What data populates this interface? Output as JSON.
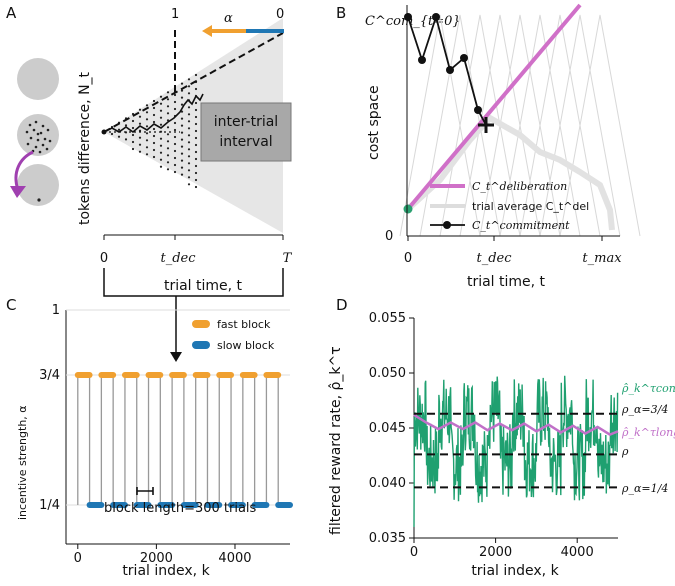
{
  "panels": {
    "A": "A",
    "B": "B",
    "C": "C",
    "D": "D"
  },
  "panelA": {
    "ylabel": "tokens difference, N_t",
    "top_one": "1",
    "top_zero": "0",
    "alpha": "α",
    "intertrial": [
      "inter-trial",
      "interval"
    ],
    "xticks": [
      "0",
      "t_dec",
      "T"
    ],
    "xlabel": "trial time, t",
    "colors": {
      "orange": "#f0a030",
      "blue": "#1f77b4",
      "purple": "#a040b0",
      "gray": "#c8c8c8"
    }
  },
  "panelB": {
    "ylabel": "cost space",
    "y_top_label": "C^com_{t=0}",
    "y_zero": "0",
    "xticks": [
      "0",
      "t_dec",
      "t_max"
    ],
    "xlabel": "trial time, t",
    "legend": [
      {
        "label": "C_t^deliberation",
        "color": "#d070c8",
        "kind": "line"
      },
      {
        "label": "trial average C_t^del",
        "color": "#dddddd",
        "kind": "line"
      },
      {
        "label": "C_t^commitment",
        "color": "#111111",
        "kind": "marker"
      }
    ],
    "commitment_start": "C^com_{t=0}",
    "start_point_color": "#2aa070"
  },
  "chart_data": [
    {
      "panel": "C",
      "type": "scatter",
      "title": "",
      "xlabel": "trial index, k",
      "ylabel": "incentive strength, α",
      "xlim": [
        -300,
        5400
      ],
      "ylim": [
        0.1,
        1.0
      ],
      "xticks": [
        0,
        2000,
        4000
      ],
      "yticks": [
        "1/4",
        "3/4",
        "1"
      ],
      "ytick_values": [
        0.25,
        0.75,
        1.0
      ],
      "block_length": 300,
      "annotation": "block length=300 trials",
      "series": [
        {
          "name": "fast block",
          "color": "#f0a030",
          "value": 0.75,
          "blocks": [
            [
              0,
              300
            ],
            [
              600,
              900
            ],
            [
              1200,
              1500
            ],
            [
              1800,
              2100
            ],
            [
              2400,
              2700
            ],
            [
              3000,
              3300
            ],
            [
              3600,
              3900
            ],
            [
              4200,
              4500
            ],
            [
              4800,
              5100
            ]
          ]
        },
        {
          "name": "slow block",
          "color": "#1f77b4",
          "value": 0.25,
          "blocks": [
            [
              300,
              600
            ],
            [
              900,
              1200
            ],
            [
              1500,
              1800
            ],
            [
              2100,
              2400
            ],
            [
              2700,
              3000
            ],
            [
              3300,
              3600
            ],
            [
              3900,
              4200
            ],
            [
              4500,
              4800
            ],
            [
              5100,
              5400
            ]
          ]
        }
      ],
      "legend_position": "top-right"
    },
    {
      "panel": "D",
      "type": "line",
      "title": "",
      "xlabel": "trial index, k",
      "ylabel": "filtered reward rate, ρ̂_k^τ",
      "xlim": [
        0,
        5000
      ],
      "ylim": [
        0.035,
        0.055
      ],
      "xticks": [
        0,
        2000,
        4000
      ],
      "yticks": [
        "0.035",
        "0.040",
        "0.045",
        "0.050",
        "0.055"
      ],
      "ytick_values": [
        0.035,
        0.04,
        0.045,
        0.05,
        0.055
      ],
      "series": [
        {
          "name": "ρ̂_k^τcontext",
          "color": "#1fa070",
          "block_means": [
            0.046,
            0.042,
            0.0462,
            0.0418,
            0.0463,
            0.0417,
            0.0464,
            0.0419,
            0.0462,
            0.042,
            0.0463,
            0.0418,
            0.0464,
            0.0419,
            0.0463,
            0.0418,
            0.0462
          ],
          "noise_amplitude": 0.0035
        },
        {
          "name": "ρ̂_k^τlong",
          "color": "#c070c8",
          "x": [
            0,
            300,
            600,
            900,
            1200,
            1500,
            1800,
            2100,
            2400,
            2700,
            3000,
            3300,
            3600,
            3900,
            4200,
            4500,
            4800,
            5000
          ],
          "values": [
            0.0462,
            0.0455,
            0.0449,
            0.0455,
            0.0449,
            0.0455,
            0.0448,
            0.0454,
            0.0448,
            0.0454,
            0.0447,
            0.0453,
            0.0446,
            0.0452,
            0.0445,
            0.0451,
            0.0444,
            0.0447
          ]
        }
      ],
      "hlines": [
        {
          "label": "ρ_{α=3/4}",
          "value": 0.0463
        },
        {
          "label": "ρ",
          "value": 0.0426
        },
        {
          "label": "ρ_{α=1/4}",
          "value": 0.0396
        }
      ],
      "right_labels": [
        "ρ̂_k^τcontext",
        "ρ_α=3/4",
        "ρ̂_k^τlong",
        "ρ",
        "ρ_α=1/4"
      ]
    }
  ]
}
